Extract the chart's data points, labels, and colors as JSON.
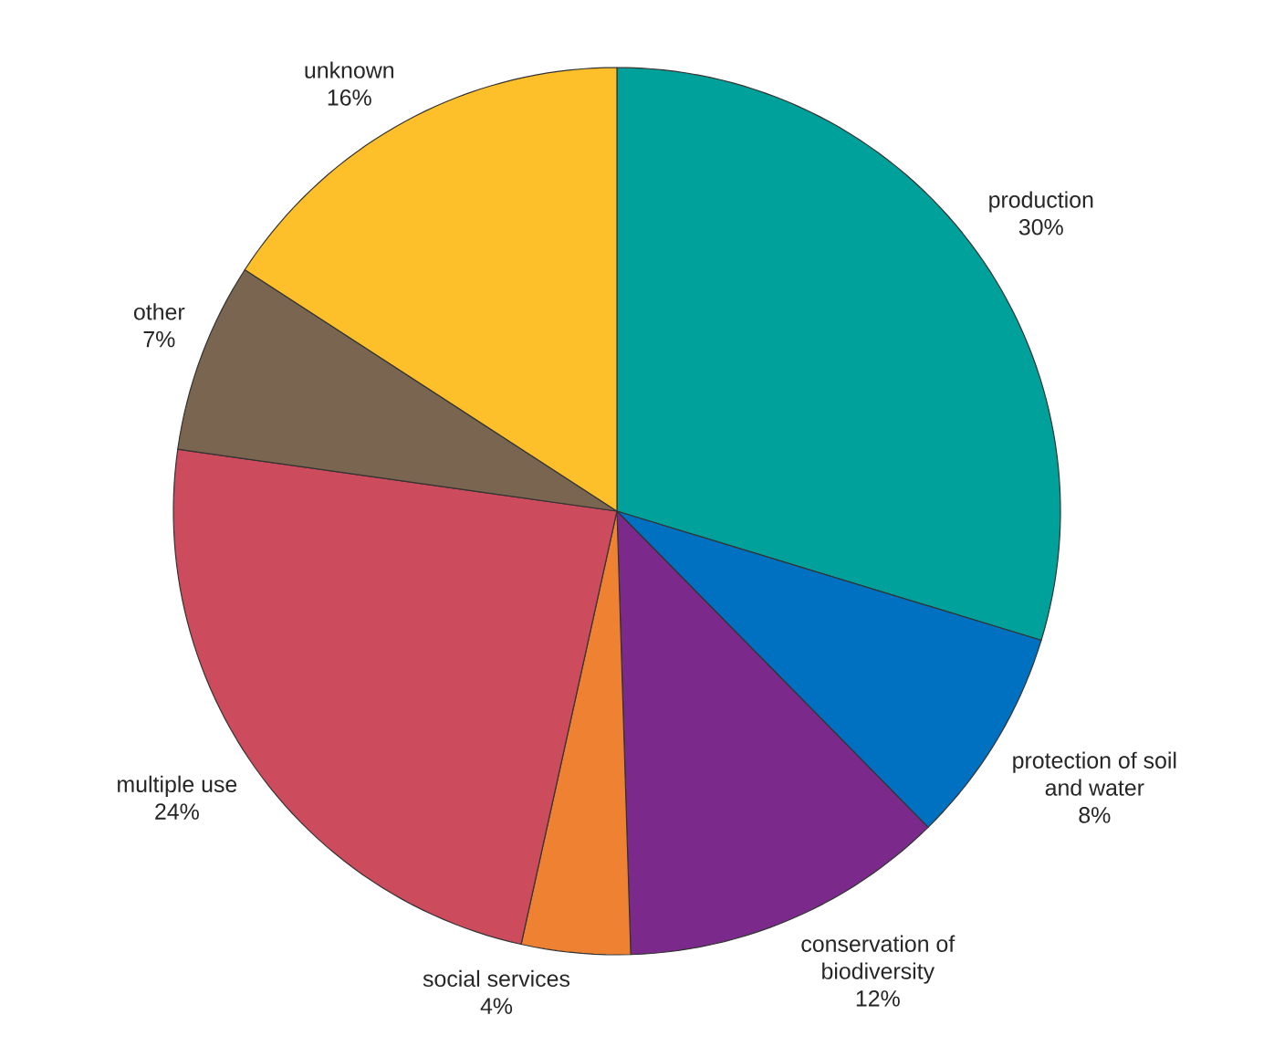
{
  "chart_data": {
    "type": "pie",
    "categories": [
      "production",
      "protection of soil and water",
      "conservation of biodiversity",
      "social services",
      "multiple use",
      "other",
      "unknown"
    ],
    "values": [
      30,
      8,
      12,
      4,
      24,
      7,
      16
    ],
    "value_labels": [
      "30%",
      "8%",
      "12%",
      "4%",
      "24%",
      "7%",
      "16%"
    ],
    "colors": [
      "#00a19a",
      "#0070c0",
      "#7b2a8c",
      "#ef8232",
      "#cc4b5c",
      "#7a6650",
      "#fdc02a"
    ]
  }
}
